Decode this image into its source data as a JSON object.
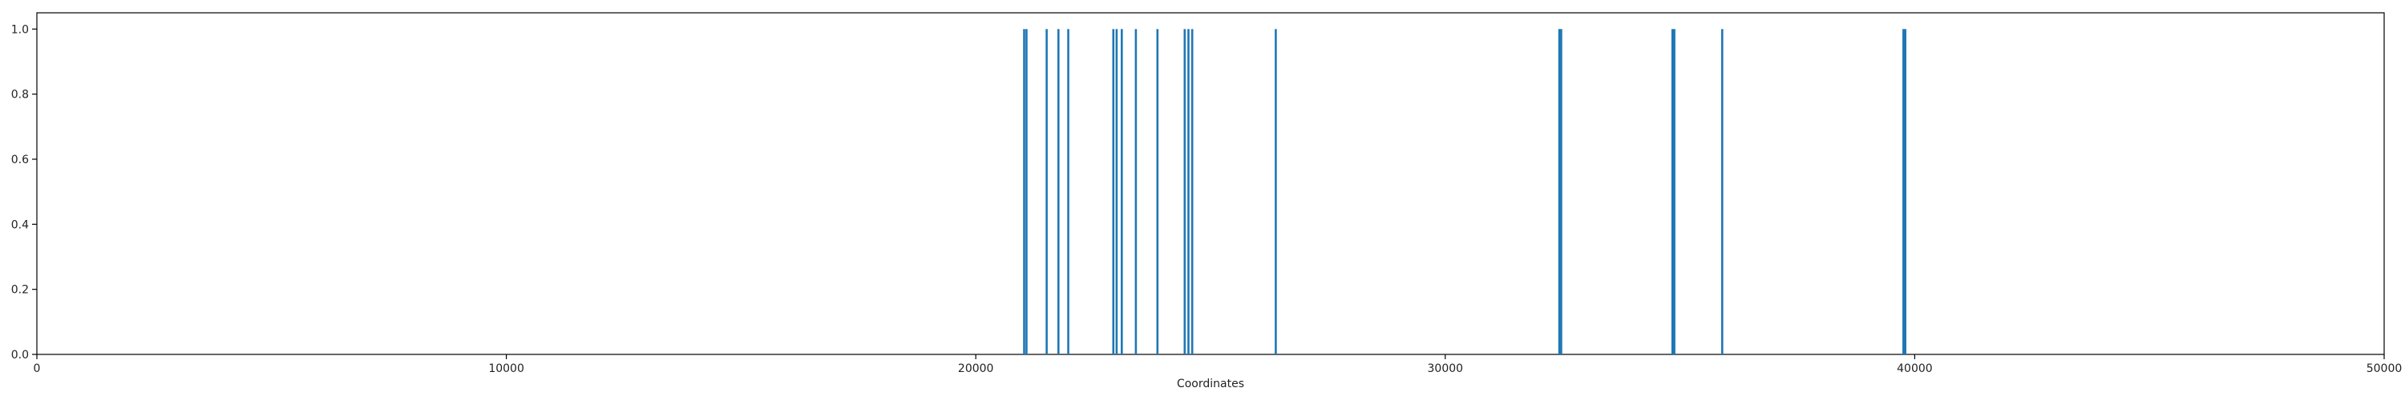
{
  "chart_data": {
    "type": "bar",
    "title": "",
    "xlabel": "Coordinates",
    "ylabel": "",
    "xlim": [
      0,
      50000
    ],
    "ylim": [
      0,
      1.05
    ],
    "x_ticks": [
      0,
      10000,
      20000,
      30000,
      40000,
      50000
    ],
    "x_tick_labels": [
      "0",
      "10000",
      "20000",
      "30000",
      "40000",
      "50000"
    ],
    "y_ticks": [
      0.0,
      0.2,
      0.4,
      0.6,
      0.8,
      1.0
    ],
    "y_tick_labels": [
      "0.0",
      "0.2",
      "0.4",
      "0.6",
      "0.8",
      "1.0"
    ],
    "grid": false,
    "legend": "none",
    "bar_color": "#1f77b4",
    "series": [
      {
        "x": [
          21030,
          21080,
          21510,
          21760,
          21970,
          22930,
          23000,
          23110,
          23410,
          23870,
          24450,
          24530,
          24610,
          26390,
          32430,
          32470,
          34840,
          34880,
          35900,
          39760,
          39800
        ],
        "values": [
          1,
          1,
          1,
          1,
          1,
          1,
          1,
          1,
          1,
          1,
          1,
          1,
          1,
          1,
          1,
          1,
          1,
          1,
          1,
          1,
          1
        ]
      }
    ]
  }
}
